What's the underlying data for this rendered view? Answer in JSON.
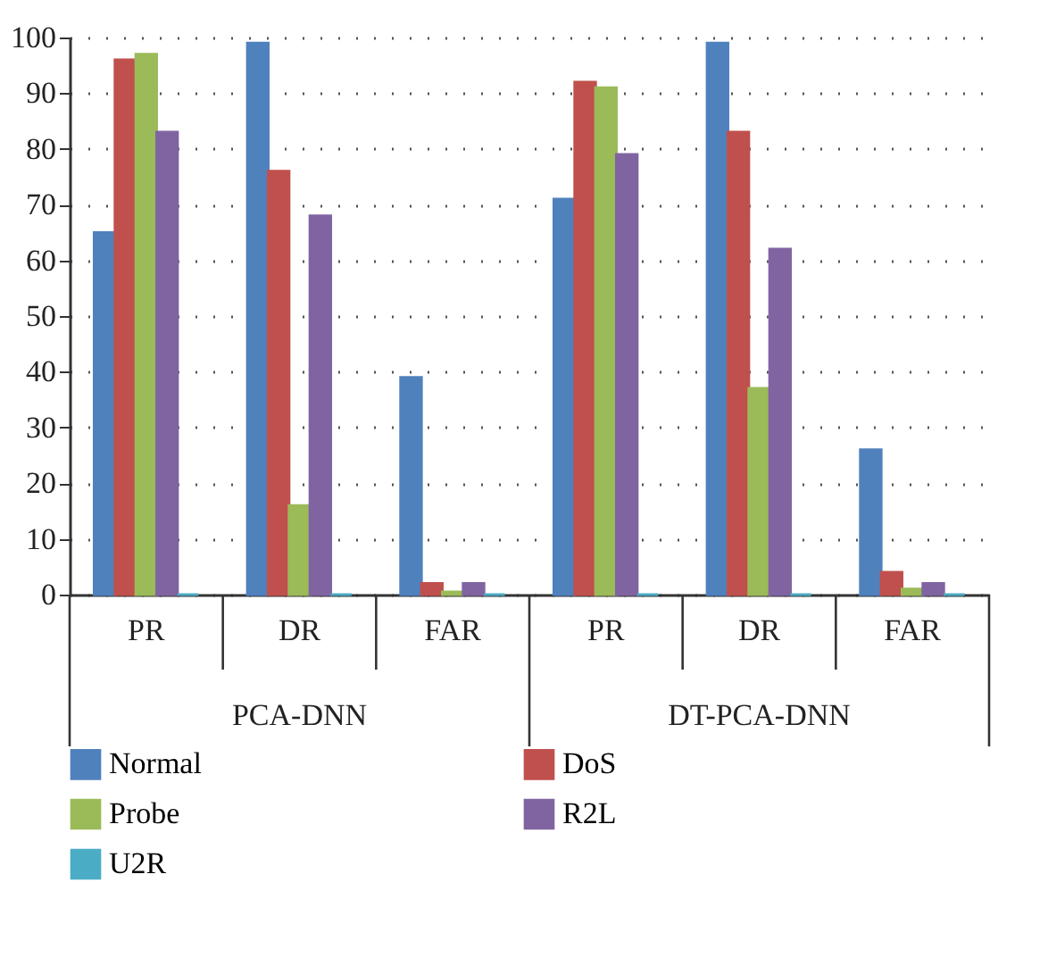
{
  "chart_data": {
    "type": "bar",
    "categories": [
      "PR",
      "DR",
      "FAR",
      "PR",
      "DR",
      "FAR"
    ],
    "series": [
      {
        "name": "Normal",
        "color": "#4f81bd",
        "values": [
          65,
          99,
          39,
          71,
          99,
          26
        ]
      },
      {
        "name": "DoS",
        "color": "#c0504d",
        "values": [
          96,
          76,
          2,
          92,
          83,
          4
        ]
      },
      {
        "name": "Probe",
        "color": "#9bbb59",
        "values": [
          97,
          16,
          0.5,
          91,
          37,
          1
        ]
      },
      {
        "name": "R2L",
        "color": "#8064a2",
        "values": [
          83,
          68,
          2,
          79,
          62,
          2
        ]
      },
      {
        "name": "U2R",
        "color": "#4bacc6",
        "values": [
          0,
          0,
          0,
          0,
          0,
          0
        ]
      }
    ],
    "annotations": [
      "PCA-DNN",
      "DT-PCA-DNN"
    ],
    "ylim": [
      0,
      100
    ],
    "yticks": [
      0,
      10,
      20,
      30,
      40,
      50,
      60,
      70,
      80,
      90,
      100
    ],
    "grid": "y",
    "legend": "bottom"
  }
}
